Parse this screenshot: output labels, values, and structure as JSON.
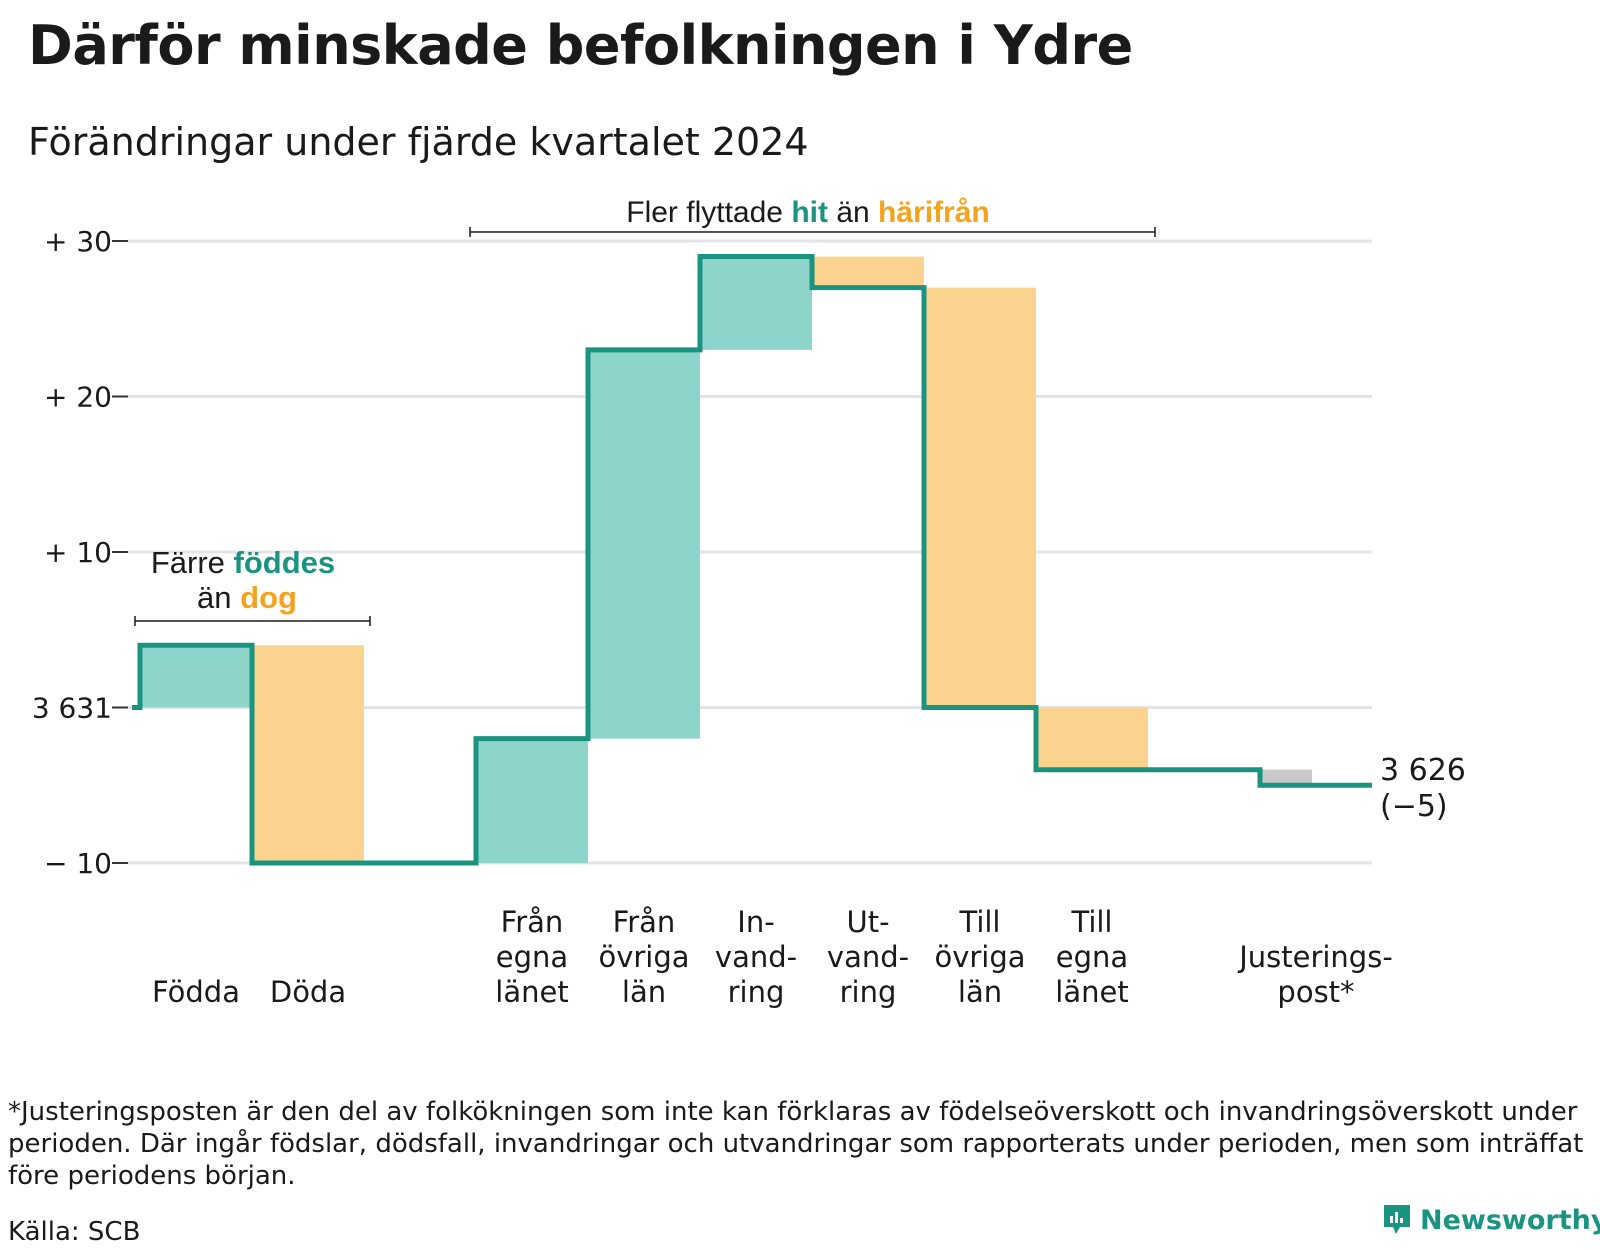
{
  "title": "Därför minskade befolkningen i Ydre",
  "subtitle": "Förändringar under fjärde kvartalet 2024",
  "colors": {
    "increase": "#8dd4cb",
    "decrease": "#fad38f",
    "adjustment": "#c8c8c8",
    "line": "#1a9480",
    "teal_text": "#1a9480",
    "orange_text": "#f5a21e",
    "grid": "#e3e3ec"
  },
  "chart_data": {
    "type": "waterfall",
    "baseline_label": "3 631",
    "y_ticks": [
      {
        "value": 30,
        "label": "+ 30"
      },
      {
        "value": 20,
        "label": "+ 20"
      },
      {
        "value": 10,
        "label": "+ 10"
      },
      {
        "value": 0,
        "label": "3 631"
      },
      {
        "value": -10,
        "label": "− 10"
      }
    ],
    "ylim": [
      -10,
      30
    ],
    "steps": [
      {
        "name": "Födda",
        "label_lines": [
          "Födda"
        ],
        "change": 4,
        "kind": "increase"
      },
      {
        "name": "Döda",
        "label_lines": [
          "Döda"
        ],
        "change": -14,
        "kind": "decrease"
      },
      {
        "name": "",
        "label_lines": [],
        "change": 0,
        "kind": "spacer"
      },
      {
        "name": "Från egna länet",
        "label_lines": [
          "Från",
          "egna",
          "länet"
        ],
        "change": 8,
        "kind": "increase"
      },
      {
        "name": "Från övriga län",
        "label_lines": [
          "Från",
          "övriga",
          "län"
        ],
        "change": 25,
        "kind": "increase"
      },
      {
        "name": "Invandring",
        "label_lines": [
          "In-",
          "vand-",
          "ring"
        ],
        "change": 6,
        "kind": "increase"
      },
      {
        "name": "Utvandring",
        "label_lines": [
          "Ut-",
          "vand-",
          "ring"
        ],
        "change": -2,
        "kind": "decrease"
      },
      {
        "name": "Till övriga län",
        "label_lines": [
          "Till",
          "övriga",
          "län"
        ],
        "change": -27,
        "kind": "decrease"
      },
      {
        "name": "Till egna länet",
        "label_lines": [
          "Till",
          "egna",
          "länet"
        ],
        "change": -4,
        "kind": "decrease"
      },
      {
        "name": "",
        "label_lines": [],
        "change": 0,
        "kind": "spacer"
      },
      {
        "name": "Justeringspost*",
        "label_lines": [
          "Justerings-",
          "post*"
        ],
        "change": -1,
        "kind": "adjustment"
      }
    ],
    "end_value_label": "3 626",
    "end_change_label": "(−5)",
    "annotations": {
      "births": {
        "line1_prefix": "Färre",
        "line1_highlight": "föddes",
        "line2_prefix": "än",
        "line2_highlight": "dog"
      },
      "migration": {
        "prefix": "Fler flyttade",
        "highlight1": "hit",
        "middle": "än",
        "highlight2": "härifrån"
      }
    }
  },
  "footnote": "*Justeringsposten är den del av folkökningen som inte kan förklaras av födelseöverskott och invandringsöverskott under perioden. Där ingår födslar, dödsfall, invandringar och utvandringar som rapporterats under perioden, men som inträffat före periodens början.",
  "source": "Källa: SCB",
  "brand": "Newsworthy"
}
